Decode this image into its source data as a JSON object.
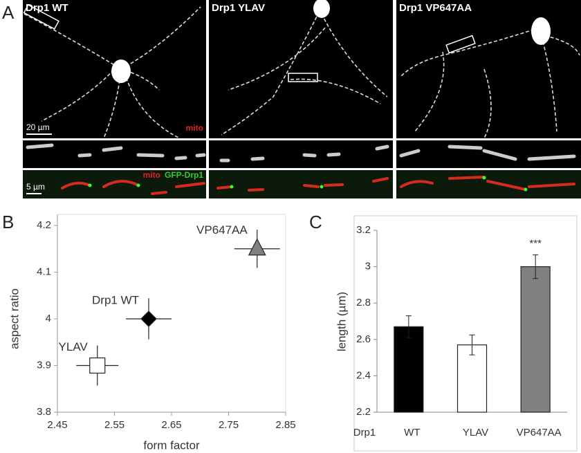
{
  "panel_a": {
    "label": "A",
    "columns": [
      {
        "title": "Drp1 WT",
        "scale_bar": "20 µm",
        "channel": "mito",
        "strip_scale_bar": "5 µm",
        "strip_channels": [
          "mito",
          "GFP-Drp1"
        ]
      },
      {
        "title": "Drp1 YLAV"
      },
      {
        "title": "Drp1 VP647AA"
      }
    ]
  },
  "chart_data": [
    {
      "type": "scatter",
      "label": "B",
      "xlabel": "form factor",
      "ylabel": "aspect ratio",
      "xlim": [
        2.45,
        2.85
      ],
      "xticks": [
        2.45,
        2.55,
        2.65,
        2.75,
        2.85
      ],
      "ylim": [
        3.8,
        4.2
      ],
      "yticks": [
        3.8,
        3.9,
        4,
        4.1,
        4.2
      ],
      "series": [
        {
          "name": "YLAV",
          "marker": "square",
          "color": "#ffffff",
          "x": [
            2.52
          ],
          "values": [
            3.9
          ],
          "xerr": [
            0.037
          ],
          "yerr": [
            0.043
          ]
        },
        {
          "name": "Drp1 WT",
          "marker": "diamond",
          "color": "#000000",
          "x": [
            2.61
          ],
          "values": [
            4.0
          ],
          "xerr": [
            0.04
          ],
          "yerr": [
            0.044
          ]
        },
        {
          "name": "VP647AA",
          "marker": "triangle",
          "color": "#808080",
          "x": [
            2.8
          ],
          "values": [
            4.15
          ],
          "xerr": [
            0.04
          ],
          "yerr": [
            0.041
          ]
        }
      ]
    },
    {
      "type": "bar",
      "label": "C",
      "ylabel": "length (µm)",
      "xlabel": "Drp1",
      "categories": [
        "WT",
        "YLAV",
        "VP647AA"
      ],
      "values": [
        2.67,
        2.57,
        3.0
      ],
      "errors": [
        0.06,
        0.055,
        0.065
      ],
      "colors": [
        "#000000",
        "#ffffff",
        "#808080"
      ],
      "ylim": [
        2.2,
        3.2
      ],
      "yticks": [
        2.2,
        2.4,
        2.6,
        2.8,
        3,
        3.2
      ],
      "annotation": {
        "text": "***",
        "category": "VP647AA"
      }
    }
  ]
}
